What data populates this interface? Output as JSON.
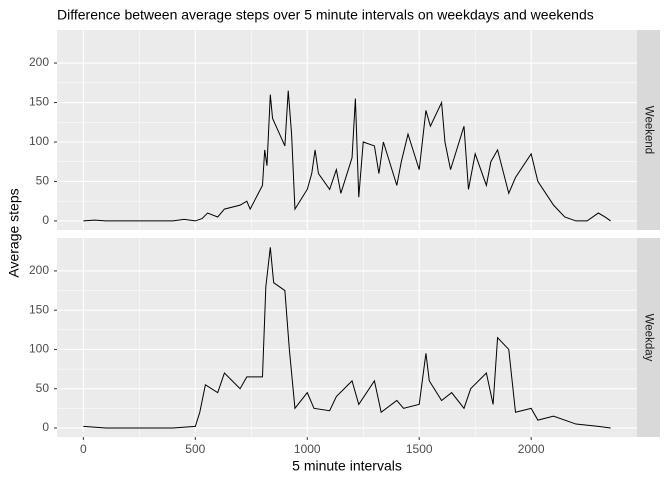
{
  "chart_data": {
    "type": "line",
    "title": "Difference between average steps over 5 minute intervals on weekdays and weekends",
    "xlabel": "5 minute intervals",
    "ylabel": "Average steps",
    "xlim": [
      -117.75,
      2472.75
    ],
    "xticks": [
      0,
      500,
      1000,
      1500,
      2000
    ],
    "ylim": [
      -11.5,
      241.9
    ],
    "yticks": [
      0,
      50,
      100,
      150,
      200
    ],
    "grid": true,
    "color": "#000000",
    "series": [
      {
        "name": "Weekend",
        "x": [
          0,
          50,
          100,
          200,
          300,
          400,
          450,
          500,
          530,
          555,
          600,
          630,
          700,
          730,
          745,
          800,
          810,
          820,
          835,
          845,
          900,
          915,
          930,
          945,
          1000,
          1020,
          1035,
          1050,
          1100,
          1130,
          1150,
          1200,
          1215,
          1230,
          1250,
          1300,
          1320,
          1340,
          1400,
          1420,
          1450,
          1500,
          1530,
          1550,
          1600,
          1615,
          1640,
          1700,
          1720,
          1750,
          1800,
          1820,
          1850,
          1900,
          1930,
          2000,
          2030,
          2100,
          2150,
          2200,
          2250,
          2300,
          2330,
          2355
        ],
        "values": [
          0,
          1,
          0,
          0,
          0,
          0,
          2,
          0,
          3,
          10,
          5,
          15,
          20,
          25,
          15,
          45,
          90,
          70,
          160,
          130,
          95,
          165,
          110,
          15,
          40,
          60,
          90,
          60,
          40,
          65,
          35,
          80,
          155,
          30,
          100,
          95,
          60,
          100,
          45,
          75,
          110,
          65,
          140,
          120,
          150,
          100,
          65,
          120,
          40,
          85,
          45,
          75,
          90,
          35,
          55,
          85,
          50,
          20,
          5,
          0,
          0,
          10,
          5,
          0
        ]
      },
      {
        "name": "Weekday",
        "x": [
          0,
          100,
          200,
          300,
          400,
          500,
          520,
          545,
          600,
          630,
          700,
          730,
          800,
          815,
          835,
          850,
          900,
          920,
          945,
          1000,
          1030,
          1100,
          1130,
          1200,
          1230,
          1300,
          1330,
          1400,
          1430,
          1500,
          1530,
          1545,
          1600,
          1645,
          1700,
          1730,
          1800,
          1830,
          1850,
          1900,
          1930,
          2000,
          2030,
          2100,
          2200,
          2300,
          2355
        ],
        "values": [
          2,
          0,
          0,
          0,
          0,
          2,
          20,
          55,
          45,
          70,
          50,
          65,
          65,
          180,
          230,
          185,
          175,
          100,
          25,
          45,
          25,
          22,
          40,
          60,
          30,
          60,
          20,
          35,
          25,
          30,
          95,
          60,
          35,
          45,
          25,
          50,
          70,
          30,
          115,
          100,
          20,
          25,
          10,
          15,
          5,
          2,
          0
        ]
      }
    ]
  }
}
